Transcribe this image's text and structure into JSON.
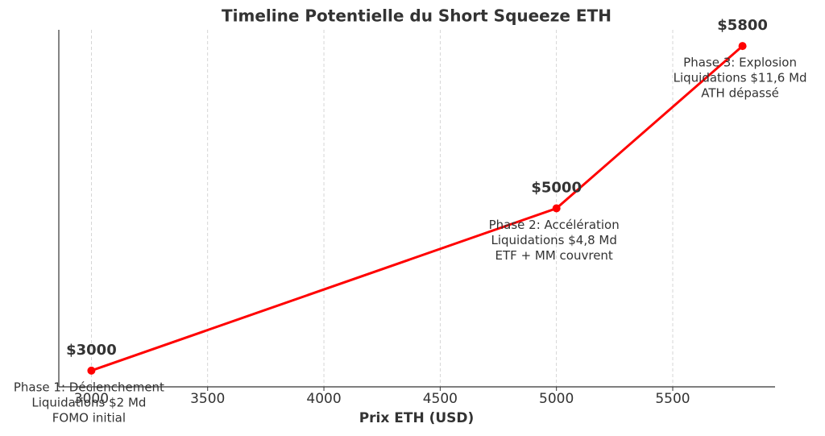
{
  "chart_data": {
    "type": "line",
    "title": "Timeline Potentielle du Short Squeeze ETH",
    "x_label": "Prix ETH (USD)",
    "x": [
      3000,
      5000,
      5800
    ],
    "values": [
      1,
      2,
      3
    ],
    "color": "#ff0000",
    "point_labels": [
      "$3000",
      "$5000",
      "$5800"
    ],
    "annotations": [
      [
        "Phase 1: Déclenchement",
        "Liquidations $2 Md",
        "FOMO initial"
      ],
      [
        "Phase 2: Accélération",
        "Liquidations $4,8 Md",
        "ETF + MM couvrent"
      ],
      [
        "Phase 3: Explosion",
        "Liquidations $11,6 Md",
        "ATH dépassé"
      ]
    ],
    "xlim": [
      2860,
      5940
    ],
    "xticks": [
      3000,
      3500,
      4000,
      4500,
      5000,
      5500
    ],
    "ylim": [
      0.9,
      3.1
    ],
    "grid": true
  }
}
